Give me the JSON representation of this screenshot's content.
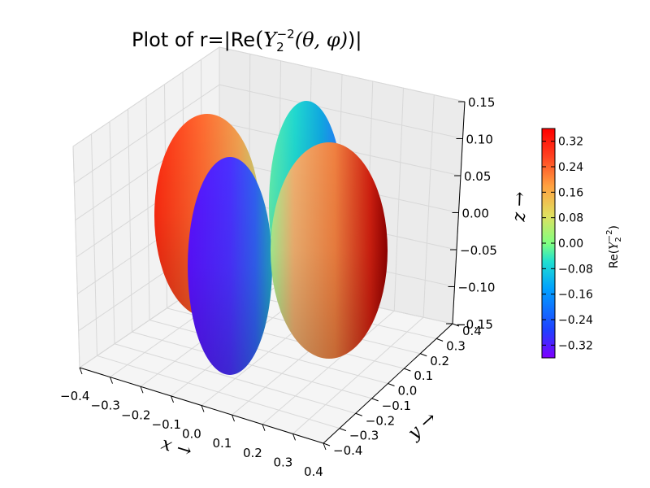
{
  "chart_data": {
    "type": "surface3d",
    "title": "Plot of  r=|Re(Y_2^{-2}(θ, φ))|",
    "title_parts": {
      "prefix": "Plot of  r=|Re",
      "func": "Y",
      "sub": "2",
      "sup": "−2",
      "args": "(θ, φ)",
      "suffix": ")|"
    },
    "xlabel": "x →",
    "ylabel": "y →",
    "zlabel": "z →",
    "x_ticks": [
      "−0.4",
      "−0.3",
      "−0.2",
      "−0.1",
      "0.0",
      "0.1",
      "0.2",
      "0.3",
      "0.4"
    ],
    "y_ticks": [
      "−0.4",
      "−0.3",
      "−0.2",
      "−0.1",
      "0.0",
      "0.1",
      "0.2",
      "0.3",
      "0.4"
    ],
    "z_ticks": [
      "0.15",
      "0.10",
      "0.05",
      "0.00",
      "−0.05",
      "−0.10",
      "−0.15"
    ],
    "xlim": [
      -0.4,
      0.4
    ],
    "ylim": [
      -0.4,
      0.4
    ],
    "zlim": [
      -0.15,
      0.15
    ],
    "colormap": "jet",
    "lobes": [
      {
        "name": "back-left",
        "sign": "+",
        "colors": [
          "#ff2a10",
          "#ff6a30",
          "#f0a050",
          "#c8d070"
        ]
      },
      {
        "name": "back-right",
        "sign": "-",
        "colors": [
          "#2a70ff",
          "#10a8e0",
          "#20d8d0",
          "#60f0b0"
        ]
      },
      {
        "name": "front-left",
        "sign": "-",
        "colors": [
          "#5a10ff",
          "#4a30ff",
          "#3060f0",
          "#20a0c0"
        ]
      },
      {
        "name": "front-right",
        "sign": "+",
        "colors": [
          "#a8f090",
          "#f0b070",
          "#f08040",
          "#d02010",
          "#900000"
        ]
      }
    ],
    "colorbar": {
      "label": "Re(Y_2^{-2})",
      "label_prefix": "Re(",
      "label_func": "Y",
      "label_sub": "2",
      "label_sup": "−2",
      "label_suffix": ")",
      "ticks": [
        "0.32",
        "0.24",
        "0.16",
        "0.08",
        "0.00",
        "−0.08",
        "−0.16",
        "−0.24",
        "−0.32"
      ],
      "tick_values": [
        0.32,
        0.24,
        0.16,
        0.08,
        0.0,
        -0.08,
        -0.16,
        -0.24,
        -0.32
      ],
      "range": [
        -0.36,
        0.36
      ]
    }
  }
}
